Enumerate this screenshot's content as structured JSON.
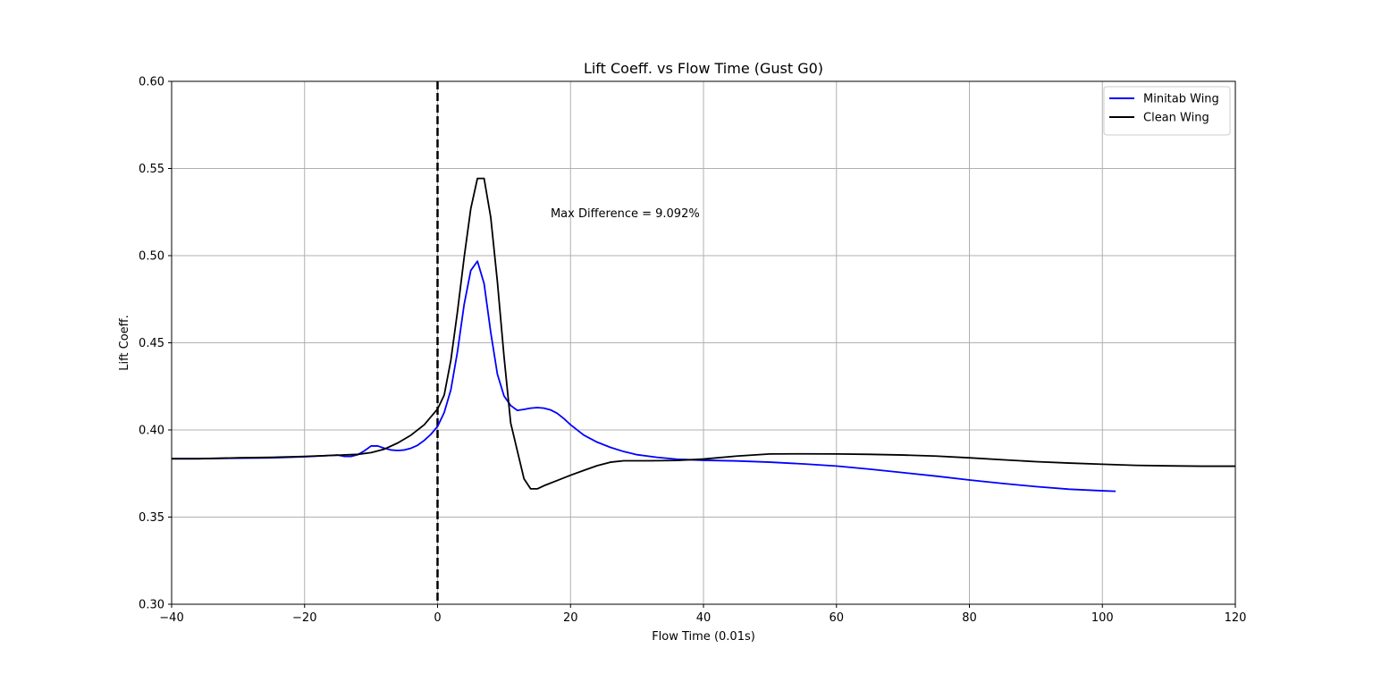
{
  "chart_data": {
    "type": "line",
    "title": "Lift Coeff. vs Flow Time (Gust G0)",
    "xlabel": "Flow Time (0.01s)",
    "ylabel": "Lift Coeff.",
    "xlim": [
      -40,
      120
    ],
    "ylim": [
      0.3,
      0.6
    ],
    "xticks": [
      -40,
      -20,
      0,
      20,
      40,
      60,
      80,
      100,
      120
    ],
    "xtick_labels": [
      "−40",
      "−20",
      "0",
      "20",
      "40",
      "60",
      "80",
      "100",
      "120"
    ],
    "yticks": [
      0.3,
      0.35,
      0.4,
      0.45,
      0.5,
      0.55,
      0.6
    ],
    "ytick_labels": [
      "0.30",
      "0.35",
      "0.40",
      "0.45",
      "0.50",
      "0.55",
      "0.60"
    ],
    "grid": true,
    "legend_position": "top-right",
    "vline": {
      "x": 0,
      "color": "#000000",
      "style": "dashed"
    },
    "annotation": {
      "text": "Max Difference = 9.092%",
      "x": 17,
      "y": 0.524
    },
    "series": [
      {
        "name": "Minitab Wing",
        "color": "#0000ff",
        "points": [
          [
            -40,
            0.3835
          ],
          [
            -36,
            0.3835
          ],
          [
            -30,
            0.3838
          ],
          [
            -25,
            0.384
          ],
          [
            -20,
            0.3846
          ],
          [
            -17,
            0.3852
          ],
          [
            -15,
            0.3856
          ],
          [
            -14,
            0.3848
          ],
          [
            -13,
            0.3848
          ],
          [
            -12,
            0.3858
          ],
          [
            -11,
            0.388
          ],
          [
            -10,
            0.3908
          ],
          [
            -9,
            0.3908
          ],
          [
            -8,
            0.3895
          ],
          [
            -7,
            0.3885
          ],
          [
            -6,
            0.3882
          ],
          [
            -5,
            0.3885
          ],
          [
            -4,
            0.3895
          ],
          [
            -3,
            0.3912
          ],
          [
            -2,
            0.394
          ],
          [
            -1,
            0.3975
          ],
          [
            0,
            0.402
          ],
          [
            1,
            0.41
          ],
          [
            2,
            0.423
          ],
          [
            3,
            0.445
          ],
          [
            4,
            0.472
          ],
          [
            5,
            0.4915
          ],
          [
            6,
            0.4968
          ],
          [
            7,
            0.484
          ],
          [
            8,
            0.456
          ],
          [
            9,
            0.432
          ],
          [
            10,
            0.4195
          ],
          [
            11,
            0.414
          ],
          [
            12,
            0.4112
          ],
          [
            13,
            0.4118
          ],
          [
            14,
            0.4125
          ],
          [
            15,
            0.4128
          ],
          [
            16,
            0.4125
          ],
          [
            17,
            0.4115
          ],
          [
            18,
            0.4095
          ],
          [
            19,
            0.4065
          ],
          [
            20,
            0.403
          ],
          [
            22,
            0.397
          ],
          [
            24,
            0.393
          ],
          [
            26,
            0.39
          ],
          [
            28,
            0.3876
          ],
          [
            30,
            0.3858
          ],
          [
            33,
            0.3843
          ],
          [
            36,
            0.3832
          ],
          [
            40,
            0.3826
          ],
          [
            45,
            0.3822
          ],
          [
            50,
            0.3815
          ],
          [
            55,
            0.3805
          ],
          [
            60,
            0.3793
          ],
          [
            65,
            0.3775
          ],
          [
            70,
            0.3755
          ],
          [
            75,
            0.3735
          ],
          [
            80,
            0.3713
          ],
          [
            85,
            0.3693
          ],
          [
            90,
            0.3675
          ],
          [
            95,
            0.366
          ],
          [
            100,
            0.3651
          ],
          [
            102,
            0.3648
          ]
        ]
      },
      {
        "name": "Clean Wing",
        "color": "#000000",
        "points": [
          [
            -40,
            0.3835
          ],
          [
            -36,
            0.3835
          ],
          [
            -30,
            0.384
          ],
          [
            -25,
            0.3843
          ],
          [
            -20,
            0.3848
          ],
          [
            -15,
            0.3855
          ],
          [
            -12,
            0.386
          ],
          [
            -10,
            0.387
          ],
          [
            -8,
            0.389
          ],
          [
            -6,
            0.3925
          ],
          [
            -4,
            0.397
          ],
          [
            -2,
            0.403
          ],
          [
            0,
            0.412
          ],
          [
            1,
            0.42
          ],
          [
            2,
            0.44
          ],
          [
            3,
            0.468
          ],
          [
            4,
            0.499
          ],
          [
            5,
            0.527
          ],
          [
            6,
            0.5443
          ],
          [
            7,
            0.5443
          ],
          [
            8,
            0.522
          ],
          [
            9,
            0.485
          ],
          [
            10,
            0.442
          ],
          [
            11,
            0.404
          ],
          [
            12,
            0.388
          ],
          [
            13,
            0.372
          ],
          [
            14,
            0.3662
          ],
          [
            15,
            0.3662
          ],
          [
            16,
            0.368
          ],
          [
            18,
            0.371
          ],
          [
            20,
            0.374
          ],
          [
            22,
            0.3768
          ],
          [
            24,
            0.3795
          ],
          [
            26,
            0.3815
          ],
          [
            28,
            0.3823
          ],
          [
            32,
            0.3823
          ],
          [
            36,
            0.3825
          ],
          [
            40,
            0.3833
          ],
          [
            45,
            0.385
          ],
          [
            50,
            0.3862
          ],
          [
            55,
            0.3863
          ],
          [
            60,
            0.3862
          ],
          [
            65,
            0.386
          ],
          [
            70,
            0.3856
          ],
          [
            75,
            0.385
          ],
          [
            80,
            0.384
          ],
          [
            85,
            0.3829
          ],
          [
            90,
            0.3818
          ],
          [
            95,
            0.381
          ],
          [
            100,
            0.3803
          ],
          [
            105,
            0.3797
          ],
          [
            110,
            0.3794
          ],
          [
            115,
            0.3792
          ],
          [
            120,
            0.3792
          ]
        ]
      }
    ]
  }
}
